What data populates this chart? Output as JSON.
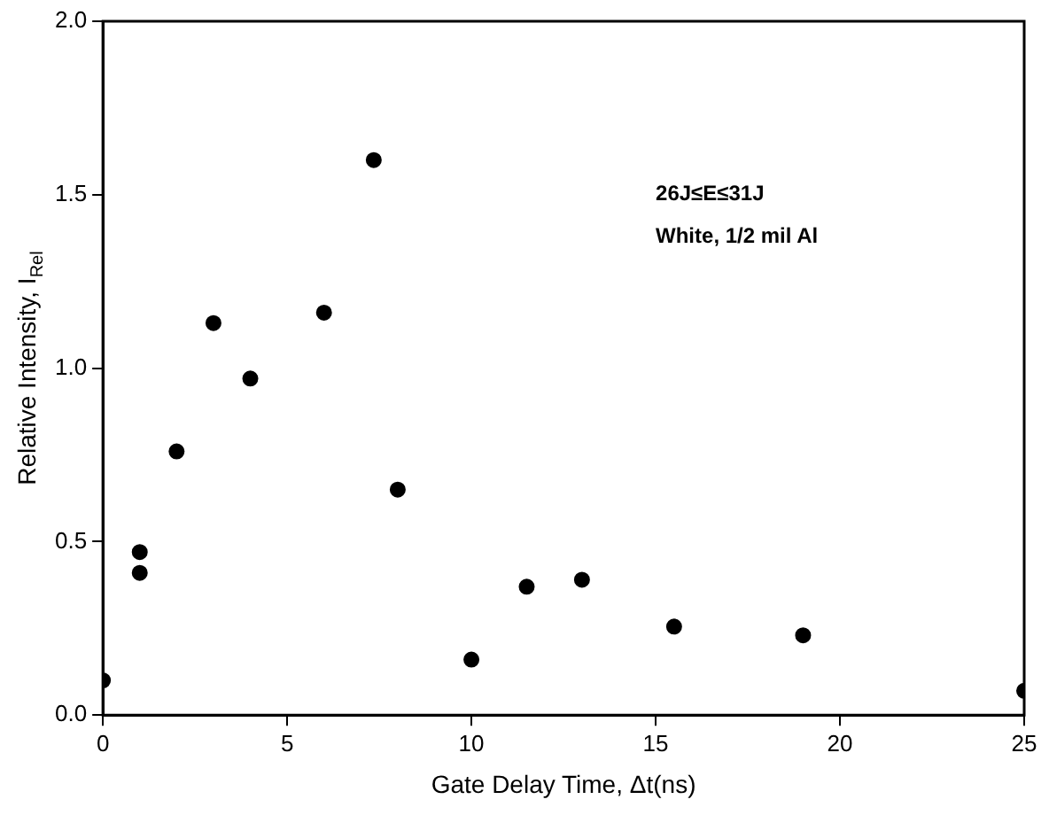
{
  "chart_data": {
    "type": "scatter",
    "xlabel": "Gate Delay Time, Δt(ns)",
    "ylabel": "Relative Intensity, I$_{Rel}$",
    "annotations": [
      "26J≤E≤31J",
      "White, 1/2 mil Al"
    ],
    "x": [
      0,
      1,
      1,
      2,
      3,
      4,
      6,
      7.35,
      8,
      10,
      11.5,
      13,
      15.5,
      19,
      25
    ],
    "series": [
      {
        "color": "#000000",
        "values": [
          0.1,
          0.47,
          0.41,
          0.76,
          1.13,
          0.97,
          1.16,
          1.6,
          0.65,
          0.16,
          0.37,
          0.39,
          0.255,
          0.23,
          0.07
        ]
      }
    ],
    "xlim": [
      0,
      25
    ],
    "xticks": [
      0,
      5,
      10,
      15,
      20,
      25
    ],
    "ylim": [
      0,
      2
    ],
    "yticks": [
      {
        "value": 0,
        "label": "0.0"
      },
      0.5,
      {
        "value": 1,
        "label": "1.0"
      },
      1.5,
      {
        "value": 2,
        "label": "2.0"
      }
    ],
    "grid": false,
    "legend": false,
    "marker": "circle"
  }
}
